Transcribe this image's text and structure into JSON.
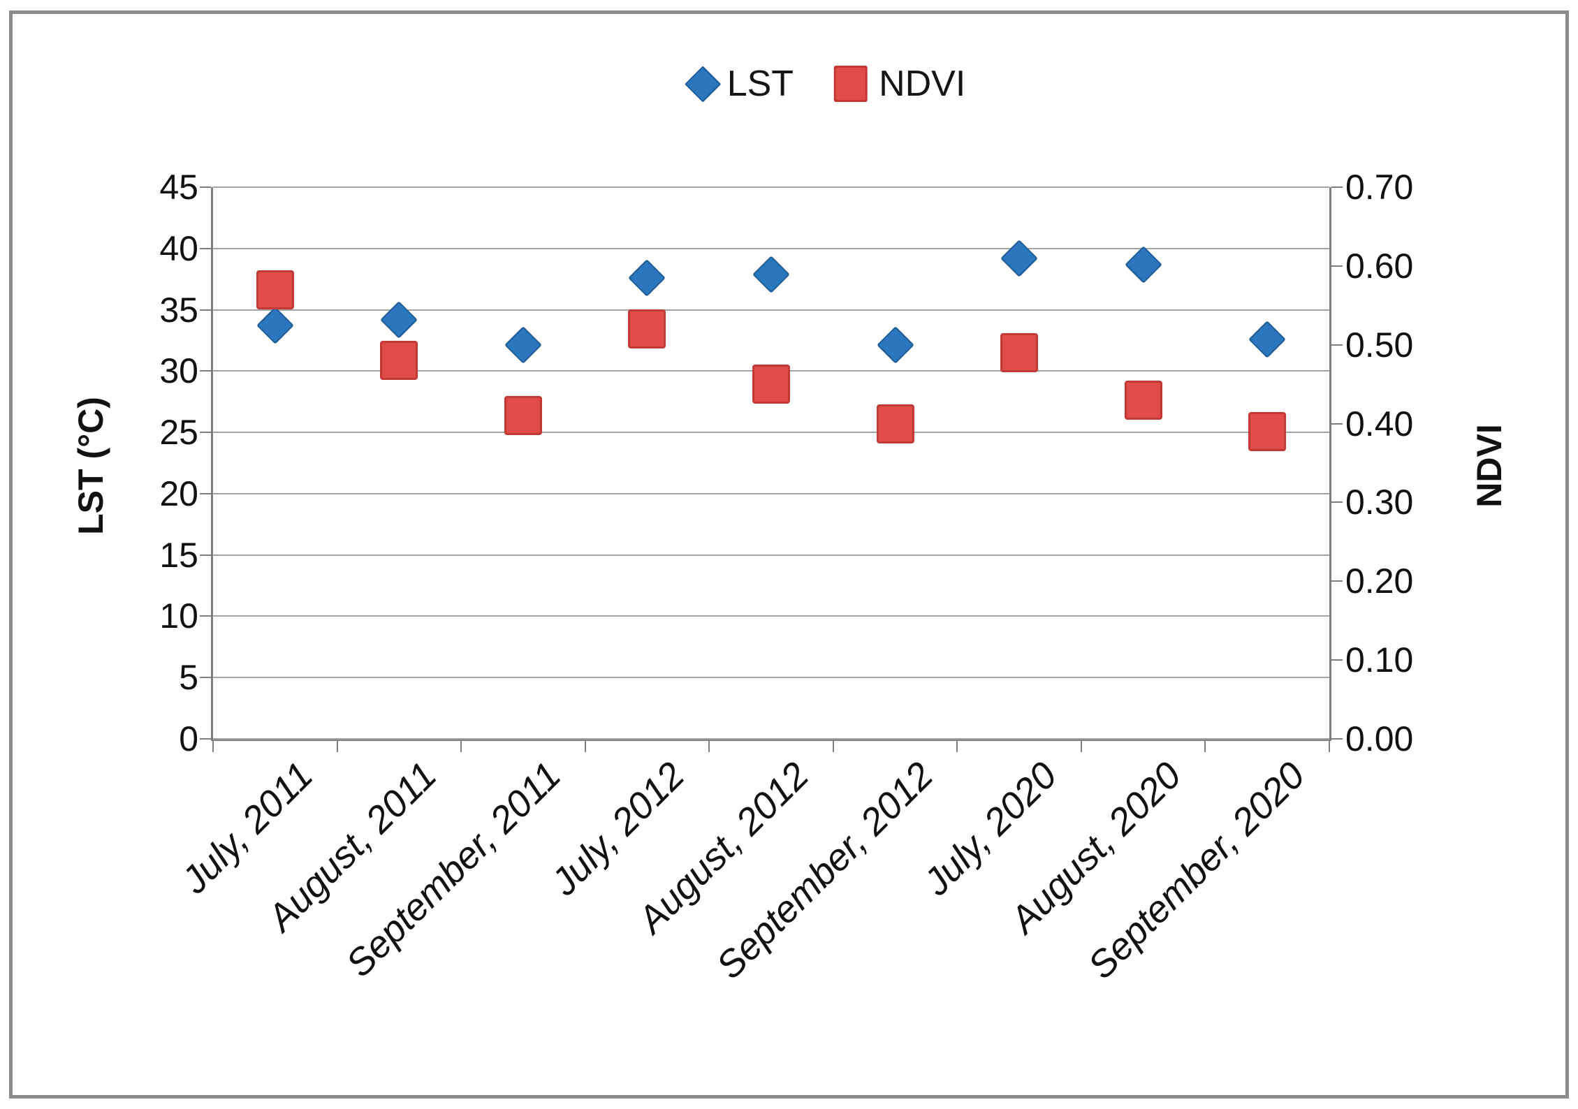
{
  "figure": {
    "background": "#ffffff",
    "frame_border_color": "#8b8b8b"
  },
  "legend": {
    "position": "top-center",
    "items": [
      {
        "label": "LST",
        "marker": "diamond-icon",
        "color": "#2B76BC",
        "border_color": "#1E5C99"
      },
      {
        "label": "NDVI",
        "marker": "square-icon",
        "color": "#E04C4A",
        "border_color": "#C23936"
      }
    ]
  },
  "left_axis": {
    "title": "LST (°C)",
    "tick_labels": [
      "45",
      "40",
      "35",
      "30",
      "25",
      "20",
      "15",
      "10",
      "5",
      "0"
    ]
  },
  "right_axis": {
    "title": "NDVI",
    "tick_labels": [
      "0.70",
      "0.60",
      "0.50",
      "0.40",
      "0.30",
      "0.20",
      "0.10",
      "0.00"
    ]
  },
  "chart_data": {
    "type": "scatter",
    "title": "",
    "categories": [
      "July, 2011",
      "August, 2011",
      "September, 2011",
      "July, 2012",
      "August, 2012",
      "September, 2012",
      "July, 2020",
      "August, 2020",
      "September, 2020"
    ],
    "series": [
      {
        "name": "LST",
        "axis": "left",
        "marker": "diamond",
        "color": "#2B76BC",
        "border_color": "#1E5C99",
        "values": [
          33.7,
          34.2,
          32.1,
          37.6,
          37.9,
          32.1,
          39.2,
          38.7,
          32.6
        ]
      },
      {
        "name": "NDVI",
        "axis": "right",
        "marker": "square",
        "color": "#E04C4A",
        "border_color": "#C23936",
        "values": [
          0.57,
          0.48,
          0.41,
          0.52,
          0.45,
          0.4,
          0.49,
          0.43,
          0.39
        ]
      }
    ],
    "left_ylabel": "LST (°C)",
    "right_ylabel": "NDVI",
    "left_ylim": [
      0,
      45
    ],
    "left_step": 5,
    "right_ylim": [
      0,
      0.7
    ],
    "right_step": 0.1,
    "grid": true,
    "gridline_color": "#a4a4a4",
    "axis_line_color": "#7f7f7f",
    "legend_position": "top-center"
  }
}
